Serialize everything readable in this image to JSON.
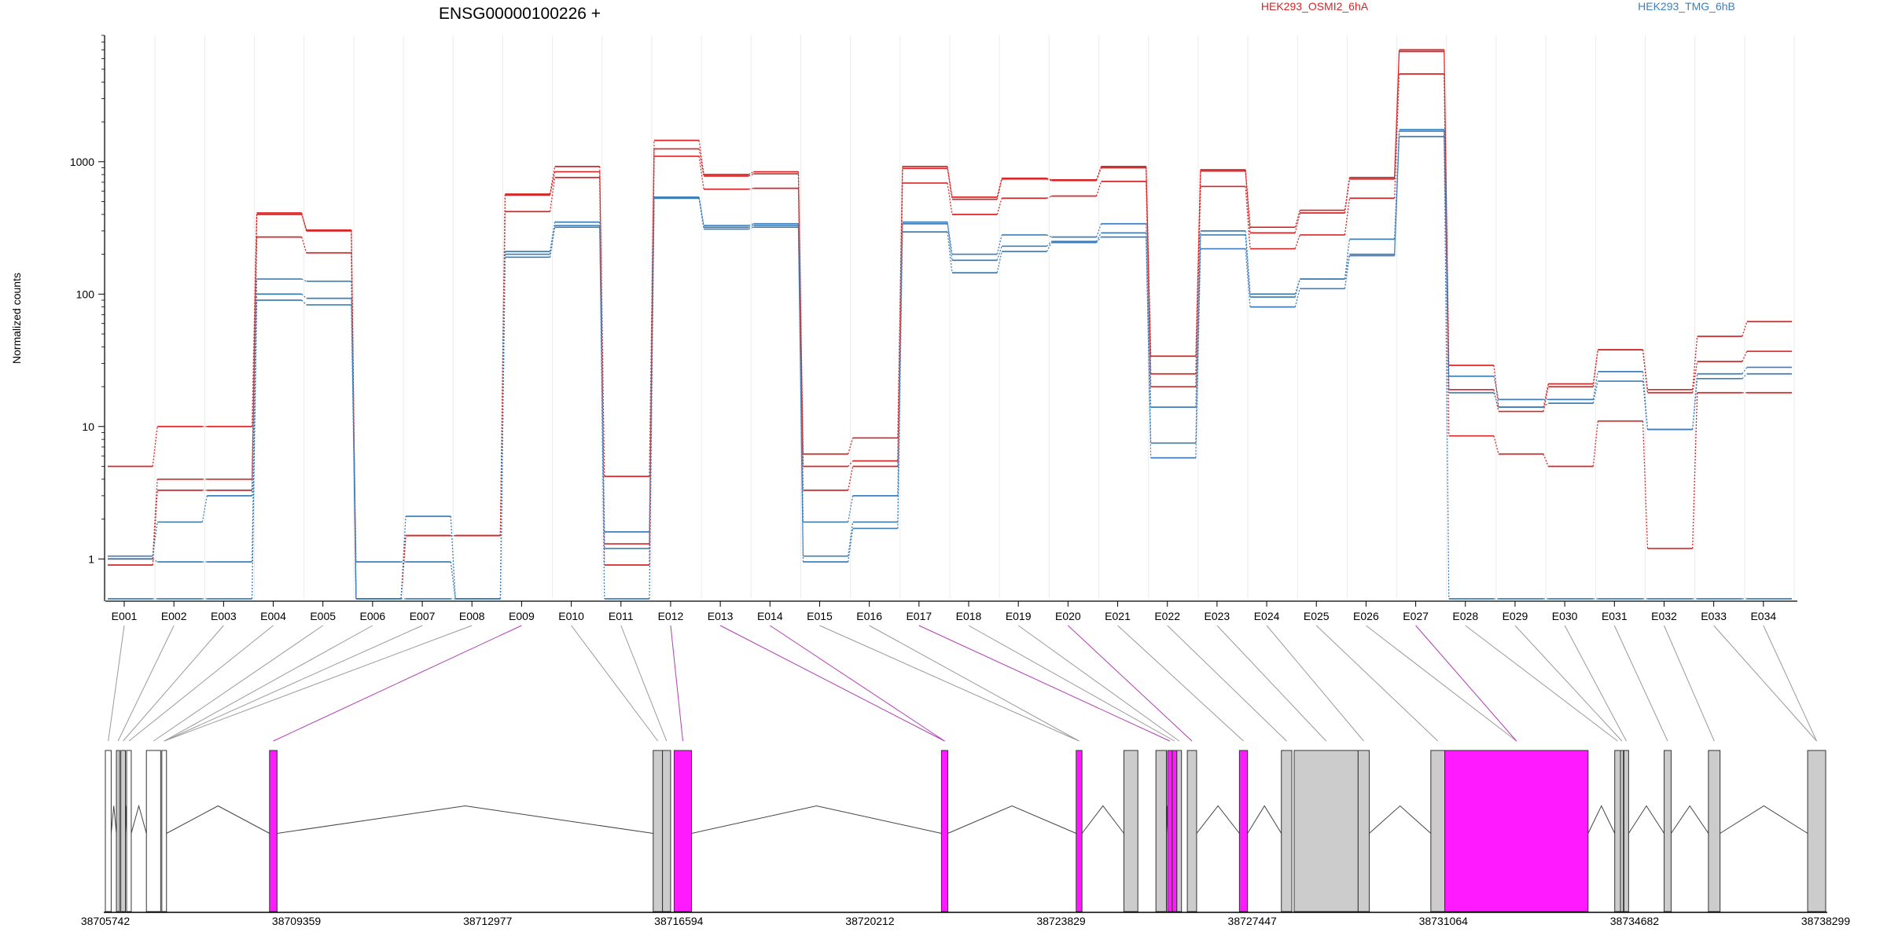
{
  "colors": {
    "sample_a": "#d62728",
    "sample_b": "#3f7fb8",
    "exon_default": "#cccccc",
    "exon_highlight": "#ff1aff",
    "connector_default": "#9a9a9a",
    "connector_highlight": "#b13db1"
  },
  "chart_data": {
    "type": "line",
    "title": "ENSG00000100226 +",
    "ylabel": "Normalized counts",
    "yscale": "log",
    "ylim": [
      0.5,
      9000
    ],
    "y_ticks": [
      "1",
      "10",
      "100",
      "1000"
    ],
    "y_tick_values": [
      1,
      10,
      100,
      1000
    ],
    "grid": "vertical",
    "legend": [
      {
        "label": "HEK293_OSMI2_6hA",
        "color": "#d62728"
      },
      {
        "label": "HEK293_TMG_6hB",
        "color": "#3f7fb8"
      }
    ],
    "categories": [
      "E001",
      "E002",
      "E003",
      "E004",
      "E005",
      "E006",
      "E007",
      "E008",
      "E009",
      "E010",
      "E011",
      "E012",
      "E013",
      "E014",
      "E015",
      "E016",
      "E017",
      "E018",
      "E019",
      "E020",
      "E021",
      "E022",
      "E023",
      "E024",
      "E025",
      "E026",
      "E027",
      "E028",
      "E029",
      "E030",
      "E031",
      "E032",
      "E033",
      "E034"
    ],
    "series": [
      {
        "group": "a",
        "values": [
          5,
          10,
          10,
          410,
          305,
          0.5,
          1.5,
          1.5,
          570,
          920,
          4.2,
          1450,
          800,
          840,
          6.2,
          8.2,
          920,
          540,
          750,
          730,
          920,
          34,
          870,
          320,
          430,
          760,
          7000,
          29,
          14,
          21,
          38,
          19,
          48,
          62
        ]
      },
      {
        "group": "a",
        "values": [
          1.0,
          4.0,
          4.0,
          400,
          300,
          0.5,
          1.5,
          1.5,
          560,
          840,
          1.3,
          1250,
          780,
          810,
          5.0,
          5.5,
          890,
          520,
          740,
          720,
          900,
          25,
          850,
          290,
          410,
          740,
          6800,
          19,
          13,
          20,
          38,
          18,
          31,
          37
        ]
      },
      {
        "group": "a",
        "values": [
          0.9,
          3.3,
          3.3,
          270,
          205,
          0.5,
          1.5,
          1.5,
          420,
          760,
          0.9,
          1100,
          620,
          630,
          3.3,
          5.0,
          690,
          400,
          530,
          550,
          710,
          20,
          650,
          220,
          280,
          530,
          4600,
          8.5,
          6.2,
          5.0,
          11,
          1.2,
          18,
          18
        ]
      },
      {
        "group": "b",
        "values": [
          1.05,
          1.9,
          3.0,
          130,
          125,
          0.5,
          2.1,
          0.5,
          210,
          350,
          1.6,
          540,
          330,
          340,
          1.9,
          3.0,
          350,
          200,
          280,
          270,
          340,
          14,
          300,
          100,
          130,
          260,
          1750,
          24,
          16,
          16,
          26,
          9.5,
          25,
          28
        ]
      },
      {
        "group": "b",
        "values": [
          1.0,
          0.95,
          0.95,
          100,
          93,
          0.95,
          0.95,
          0.5,
          200,
          330,
          1.2,
          530,
          320,
          330,
          1.05,
          1.9,
          340,
          180,
          230,
          250,
          290,
          7.5,
          280,
          95,
          130,
          200,
          1700,
          18,
          14,
          15,
          22,
          9.5,
          23,
          25
        ]
      },
      {
        "group": "b",
        "values": [
          0.5,
          0.5,
          0.5,
          90,
          83,
          0.5,
          0.5,
          0.5,
          190,
          320,
          0.5,
          530,
          310,
          320,
          0.95,
          1.7,
          295,
          145,
          210,
          245,
          270,
          5.8,
          220,
          80,
          110,
          195,
          1550,
          0.5,
          0.5,
          0.5,
          0.5,
          0.5,
          0.5,
          0.5
        ]
      }
    ],
    "exon_highlight": [
      false,
      false,
      false,
      false,
      false,
      false,
      false,
      false,
      true,
      false,
      false,
      true,
      true,
      true,
      false,
      false,
      true,
      false,
      false,
      true,
      false,
      false,
      false,
      false,
      false,
      false,
      true,
      false,
      false,
      false,
      false,
      false,
      false,
      false
    ],
    "genomic_ticks": [
      "38705742",
      "38709359",
      "38712977",
      "38716594",
      "38720212",
      "38723829",
      "38727447",
      "38731064",
      "38734682",
      "38738299"
    ],
    "genomic_range": [
      38705742,
      38738299
    ],
    "exons": [
      {
        "start": 38705742,
        "end": 38705852
      },
      {
        "start": 38705951,
        "end": 38706012
      },
      {
        "start": 38706034,
        "end": 38706122
      },
      {
        "start": 38706144,
        "end": 38706232
      },
      {
        "start": 38706519,
        "end": 38706789
      },
      {
        "start": 38706811,
        "end": 38706899
      },
      {
        "start": 38708849,
        "end": 38708992
      },
      {
        "start": 38716110,
        "end": 38716286
      },
      {
        "start": 38716286,
        "end": 38716440
      },
      {
        "start": 38716506,
        "end": 38716836
      },
      {
        "start": 38721565,
        "end": 38721686
      },
      {
        "start": 38724115,
        "end": 38724225
      },
      {
        "start": 38725018,
        "end": 38725282
      },
      {
        "start": 38725624,
        "end": 38725822
      },
      {
        "start": 38725844,
        "end": 38725932
      },
      {
        "start": 38725932,
        "end": 38726020
      },
      {
        "start": 38726020,
        "end": 38726108
      },
      {
        "start": 38726218,
        "end": 38726394
      },
      {
        "start": 38727204,
        "end": 38727358
      },
      {
        "start": 38727998,
        "end": 38728196
      },
      {
        "start": 38728240,
        "end": 38729451
      },
      {
        "start": 38729451,
        "end": 38729661
      },
      {
        "start": 38730827,
        "end": 38731091
      },
      {
        "start": 38731091,
        "end": 38733803
      },
      {
        "start": 38734307,
        "end": 38734416
      },
      {
        "start": 38734416,
        "end": 38734471
      },
      {
        "start": 38734482,
        "end": 38734570
      },
      {
        "start": 38735242,
        "end": 38735374
      },
      {
        "start": 38736080,
        "end": 38736300
      },
      {
        "start": 38737958,
        "end": 38738299
      }
    ],
    "exon_fill": [
      "white",
      "grey",
      "grey",
      "white",
      "white",
      "white",
      "highlight",
      "grey",
      "grey",
      "highlight",
      "highlight",
      "highlight",
      "grey",
      "grey",
      "highlight",
      "highlight",
      "grey",
      "grey",
      "highlight",
      "grey",
      "grey",
      "grey",
      "grey",
      "highlight",
      "grey",
      "grey",
      "grey",
      "grey",
      "grey",
      "grey"
    ],
    "bin_to_exon": [
      0,
      1,
      2,
      3,
      4,
      5,
      5,
      5,
      6,
      7,
      8,
      9,
      10,
      10,
      11,
      11,
      14,
      15,
      16,
      17,
      18,
      19,
      20,
      21,
      22,
      23,
      23,
      24,
      25,
      26,
      27,
      28,
      29,
      29
    ],
    "introns": [
      [
        0,
        1
      ],
      [
        2,
        3
      ],
      [
        3,
        4
      ],
      [
        5,
        6
      ],
      [
        6,
        7
      ],
      [
        9,
        10
      ],
      [
        10,
        11
      ],
      [
        11,
        12
      ],
      [
        13,
        14
      ],
      [
        17,
        18
      ],
      [
        18,
        19
      ],
      [
        21,
        22
      ],
      [
        23,
        24
      ],
      [
        26,
        27
      ],
      [
        27,
        28
      ],
      [
        28,
        29
      ]
    ]
  }
}
